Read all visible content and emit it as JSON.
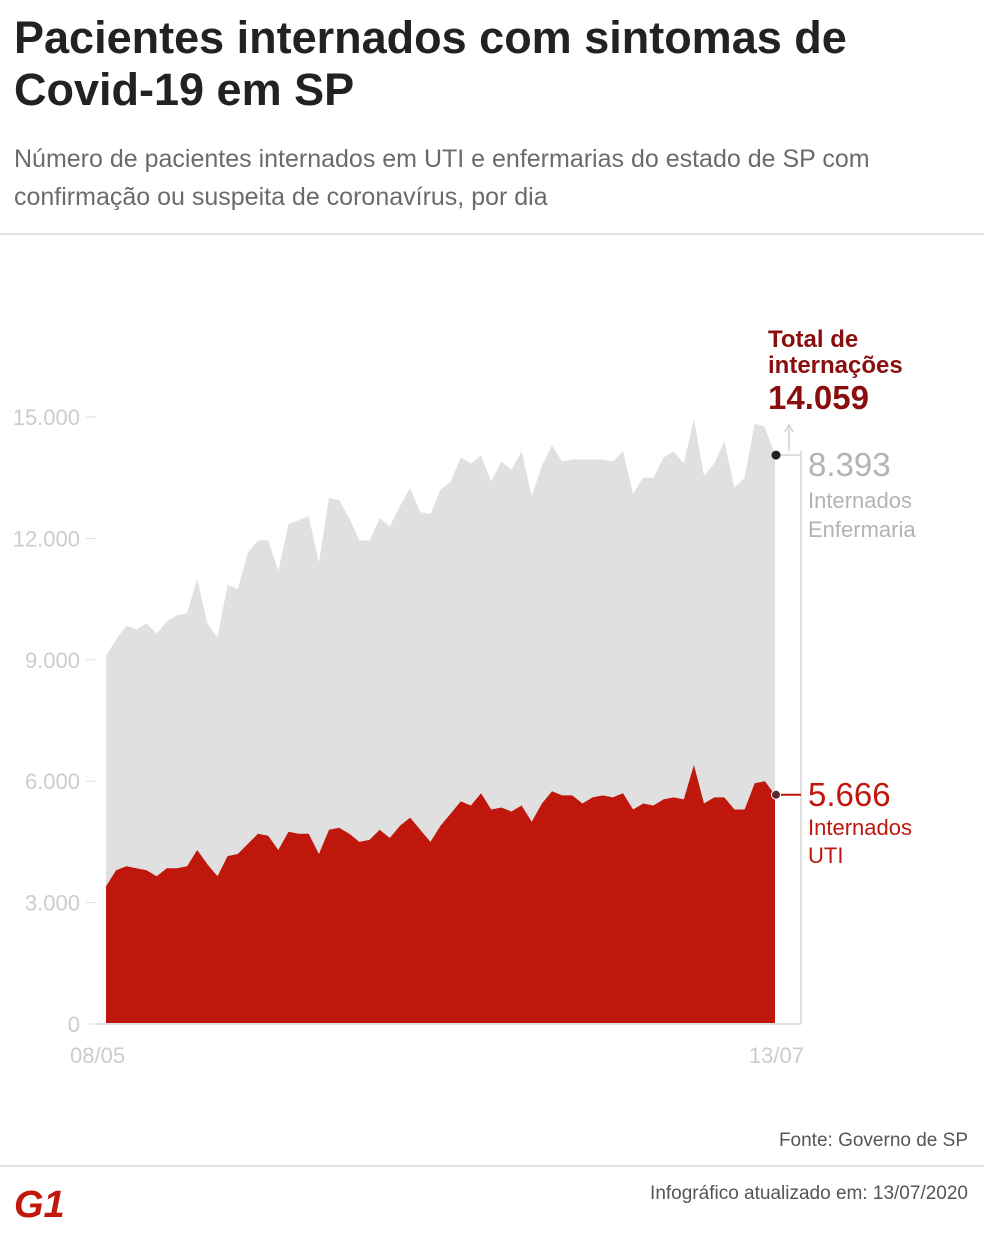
{
  "title": "Pacientes internados com sintomas de Covid-19 em SP",
  "subtitle": "Número de pacientes internados em UTI e enfermarias do estado de SP com confirmação ou suspeita de coronavírus, por dia",
  "source": "Fonte: Governo de SP",
  "updated": "Infográfico atualizado em: 13/07/2020",
  "logo_text": "G1",
  "colors": {
    "total_area": "#e0e0e0",
    "uti_area": "#c0170d",
    "total_label": "#8b0e0e",
    "uti_label": "#c0170d",
    "enfermaria_label": "#b3b3b3",
    "axis_text": "#cccccc",
    "logo": "#c4170c"
  },
  "annotations": {
    "total": {
      "label_line1": "Total de",
      "label_line2": "internações",
      "value": "14.059"
    },
    "enfermaria": {
      "value": "8.393",
      "label_line1": "Internados",
      "label_line2": "Enfermaria"
    },
    "uti": {
      "value": "5.666",
      "label_line1": "Internados",
      "label_line2": "UTI"
    }
  },
  "chart_data": {
    "type": "area",
    "title": "",
    "xlabel": "",
    "ylabel": "",
    "x_start": "08/05",
    "x_end": "13/07",
    "x_tick_labels": [
      "08/05",
      "13/07"
    ],
    "y_ticks": [
      0,
      3000,
      6000,
      9000,
      12000,
      15000
    ],
    "y_tick_labels": [
      "0",
      "3.000",
      "6.000",
      "9.000",
      "12.000",
      "15.000"
    ],
    "ylim": [
      0,
      15000
    ],
    "grid": false,
    "legend": "none",
    "series": [
      {
        "name": "Total de internações",
        "values": [
          9100,
          9500,
          9850,
          9750,
          9900,
          9650,
          9950,
          10100,
          10150,
          11000,
          9900,
          9550,
          10850,
          10750,
          11650,
          11950,
          11950,
          11200,
          12350,
          12450,
          12550,
          11400,
          13000,
          12950,
          12500,
          11950,
          11950,
          12500,
          12300,
          12800,
          13250,
          12650,
          12600,
          13200,
          13400,
          14000,
          13850,
          14050,
          13400,
          13900,
          13700,
          14150,
          13050,
          13800,
          14300,
          13900,
          13950,
          13950,
          13950,
          13950,
          13900,
          14150,
          13100,
          13500,
          13500,
          14000,
          14150,
          13850,
          14950,
          13550,
          13850,
          14400,
          13250,
          13500,
          14850,
          14750,
          14059
        ]
      },
      {
        "name": "Internados UTI",
        "values": [
          3400,
          3800,
          3900,
          3850,
          3800,
          3650,
          3850,
          3850,
          3900,
          4300,
          3950,
          3650,
          4150,
          4200,
          4450,
          4700,
          4650,
          4300,
          4750,
          4700,
          4700,
          4200,
          4800,
          4850,
          4700,
          4500,
          4550,
          4800,
          4600,
          4900,
          5100,
          4800,
          4500,
          4900,
          5200,
          5500,
          5400,
          5700,
          5300,
          5350,
          5250,
          5400,
          5000,
          5450,
          5750,
          5650,
          5650,
          5450,
          5600,
          5650,
          5600,
          5700,
          5300,
          5450,
          5400,
          5550,
          5600,
          5550,
          6400,
          5450,
          5600,
          5600,
          5300,
          5300,
          5950,
          6000,
          5666
        ]
      }
    ],
    "end_values": {
      "total": 14059,
      "enfermaria": 8393,
      "uti": 5666
    }
  }
}
